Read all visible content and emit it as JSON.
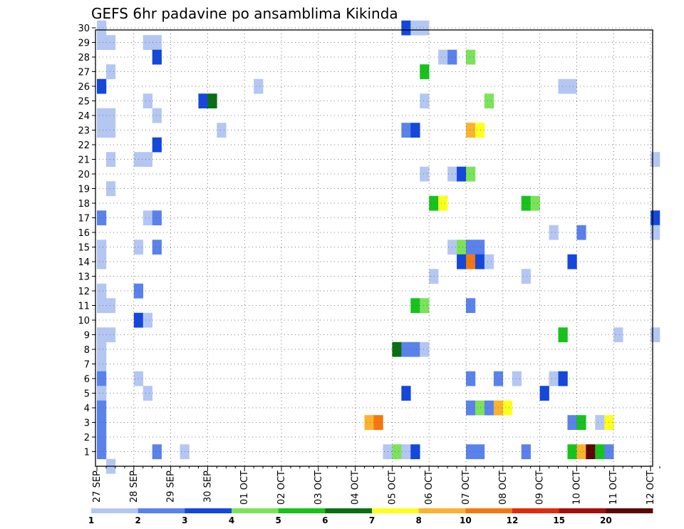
{
  "chart_data": {
    "type": "heatmap",
    "title": "GEFS 6hr padavine po ansamblima Kikinda",
    "xlabel": "",
    "ylabel": "",
    "y_range": [
      1,
      30
    ],
    "x_range_steps": [
      0,
      61
    ],
    "x_step_unit": "6 hours starting 27 SEP 00z",
    "x_tick_labels": [
      "27 SEP",
      "28 SEP",
      "29 SEP",
      "30 SEP",
      "01 OCT",
      "02 OCT",
      "03 OCT",
      "04 OCT",
      "05 OCT",
      "06 OCT",
      "07 OCT",
      "08 OCT",
      "09 OCT",
      "10 OCT",
      "11 OCT",
      "12 OCT"
    ],
    "y_tick_labels": [
      "1",
      "2",
      "3",
      "4",
      "5",
      "6",
      "7",
      "8",
      "9",
      "10",
      "11",
      "12",
      "13",
      "14",
      "15",
      "16",
      "17",
      "18",
      "19",
      "20",
      "21",
      "22",
      "23",
      "24",
      "25",
      "26",
      "27",
      "28",
      "29",
      "30"
    ],
    "grid": true,
    "legend_position": "bottom",
    "legend": {
      "levels": [
        "1",
        "2",
        "3",
        "4",
        "5",
        "6",
        "7",
        "8",
        "10",
        "12",
        "15",
        "20"
      ],
      "colors": [
        "#b4c7f3",
        "#5a82eb",
        "#1447dc",
        "#7be35a",
        "#18c21c",
        "#0a6e12",
        "#ffff1e",
        "#fbb22e",
        "#f47710",
        "#de2c0c",
        "#a40d07",
        "#5c0606"
      ]
    },
    "cells_note": "each cell: [member, step, color_index]",
    "cells": [
      [
        30,
        0,
        0
      ],
      [
        30,
        33,
        2
      ],
      [
        30,
        34,
        0
      ],
      [
        30,
        35,
        0
      ],
      [
        29,
        0,
        0
      ],
      [
        29,
        1,
        0
      ],
      [
        29,
        5,
        0
      ],
      [
        29,
        6,
        0
      ],
      [
        28,
        6,
        2
      ],
      [
        28,
        37,
        0
      ],
      [
        28,
        38,
        1
      ],
      [
        28,
        40,
        3
      ],
      [
        27,
        1,
        0
      ],
      [
        27,
        35,
        4
      ],
      [
        26,
        0,
        2
      ],
      [
        26,
        17,
        0
      ],
      [
        26,
        50,
        0
      ],
      [
        26,
        51,
        0
      ],
      [
        25,
        5,
        0
      ],
      [
        25,
        11,
        2
      ],
      [
        25,
        12,
        5
      ],
      [
        25,
        35,
        0
      ],
      [
        25,
        42,
        3
      ],
      [
        24,
        0,
        0
      ],
      [
        24,
        1,
        0
      ],
      [
        24,
        6,
        0
      ],
      [
        23,
        0,
        0
      ],
      [
        23,
        1,
        0
      ],
      [
        23,
        13,
        0
      ],
      [
        23,
        33,
        1
      ],
      [
        23,
        34,
        2
      ],
      [
        23,
        40,
        7
      ],
      [
        23,
        41,
        6
      ],
      [
        22,
        6,
        2
      ],
      [
        21,
        1,
        0
      ],
      [
        21,
        4,
        0
      ],
      [
        21,
        5,
        0
      ],
      [
        21,
        60,
        0
      ],
      [
        20,
        35,
        0
      ],
      [
        20,
        38,
        0
      ],
      [
        20,
        39,
        2
      ],
      [
        20,
        40,
        3
      ],
      [
        19,
        1,
        0
      ],
      [
        18,
        36,
        4
      ],
      [
        18,
        37,
        6
      ],
      [
        18,
        46,
        4
      ],
      [
        18,
        47,
        3
      ],
      [
        17,
        0,
        1
      ],
      [
        17,
        5,
        0
      ],
      [
        17,
        6,
        1
      ],
      [
        17,
        60,
        2
      ],
      [
        16,
        49,
        0
      ],
      [
        16,
        52,
        1
      ],
      [
        16,
        60,
        0
      ],
      [
        15,
        0,
        0
      ],
      [
        15,
        4,
        0
      ],
      [
        15,
        6,
        1
      ],
      [
        15,
        38,
        0
      ],
      [
        15,
        39,
        3
      ],
      [
        15,
        40,
        1
      ],
      [
        15,
        41,
        1
      ],
      [
        14,
        0,
        0
      ],
      [
        14,
        39,
        2
      ],
      [
        14,
        40,
        8
      ],
      [
        14,
        41,
        2
      ],
      [
        14,
        42,
        0
      ],
      [
        14,
        51,
        2
      ],
      [
        13,
        36,
        0
      ],
      [
        13,
        46,
        0
      ],
      [
        12,
        0,
        0
      ],
      [
        12,
        4,
        1
      ],
      [
        11,
        0,
        0
      ],
      [
        11,
        1,
        0
      ],
      [
        11,
        34,
        4
      ],
      [
        11,
        35,
        3
      ],
      [
        11,
        40,
        1
      ],
      [
        10,
        4,
        2
      ],
      [
        10,
        5,
        0
      ],
      [
        9,
        0,
        0
      ],
      [
        9,
        1,
        0
      ],
      [
        9,
        50,
        4
      ],
      [
        9,
        56,
        0
      ],
      [
        9,
        60,
        0
      ],
      [
        8,
        0,
        0
      ],
      [
        8,
        32,
        5
      ],
      [
        8,
        33,
        1
      ],
      [
        8,
        34,
        1
      ],
      [
        8,
        35,
        0
      ],
      [
        7,
        0,
        0
      ],
      [
        6,
        0,
        1
      ],
      [
        6,
        4,
        0
      ],
      [
        6,
        40,
        1
      ],
      [
        6,
        43,
        1
      ],
      [
        6,
        45,
        0
      ],
      [
        6,
        49,
        0
      ],
      [
        6,
        50,
        2
      ],
      [
        5,
        0,
        0
      ],
      [
        5,
        5,
        0
      ],
      [
        5,
        33,
        2
      ],
      [
        5,
        48,
        2
      ],
      [
        4,
        0,
        1
      ],
      [
        4,
        40,
        1
      ],
      [
        4,
        41,
        3
      ],
      [
        4,
        42,
        1
      ],
      [
        4,
        43,
        7
      ],
      [
        4,
        44,
        6
      ],
      [
        3,
        0,
        1
      ],
      [
        3,
        29,
        7
      ],
      [
        3,
        30,
        8
      ],
      [
        3,
        51,
        1
      ],
      [
        3,
        52,
        4
      ],
      [
        3,
        54,
        0
      ],
      [
        3,
        55,
        6
      ],
      [
        2,
        0,
        1
      ],
      [
        1,
        0,
        1
      ],
      [
        1,
        6,
        1
      ],
      [
        1,
        9,
        0
      ],
      [
        1,
        31,
        0
      ],
      [
        1,
        32,
        3
      ],
      [
        1,
        33,
        0
      ],
      [
        1,
        34,
        2
      ],
      [
        1,
        40,
        1
      ],
      [
        1,
        41,
        1
      ],
      [
        1,
        46,
        1
      ],
      [
        1,
        51,
        4
      ],
      [
        1,
        52,
        7
      ],
      [
        1,
        53,
        11
      ],
      [
        1,
        54,
        4
      ],
      [
        1,
        55,
        1
      ],
      [
        0,
        1,
        0
      ]
    ]
  }
}
